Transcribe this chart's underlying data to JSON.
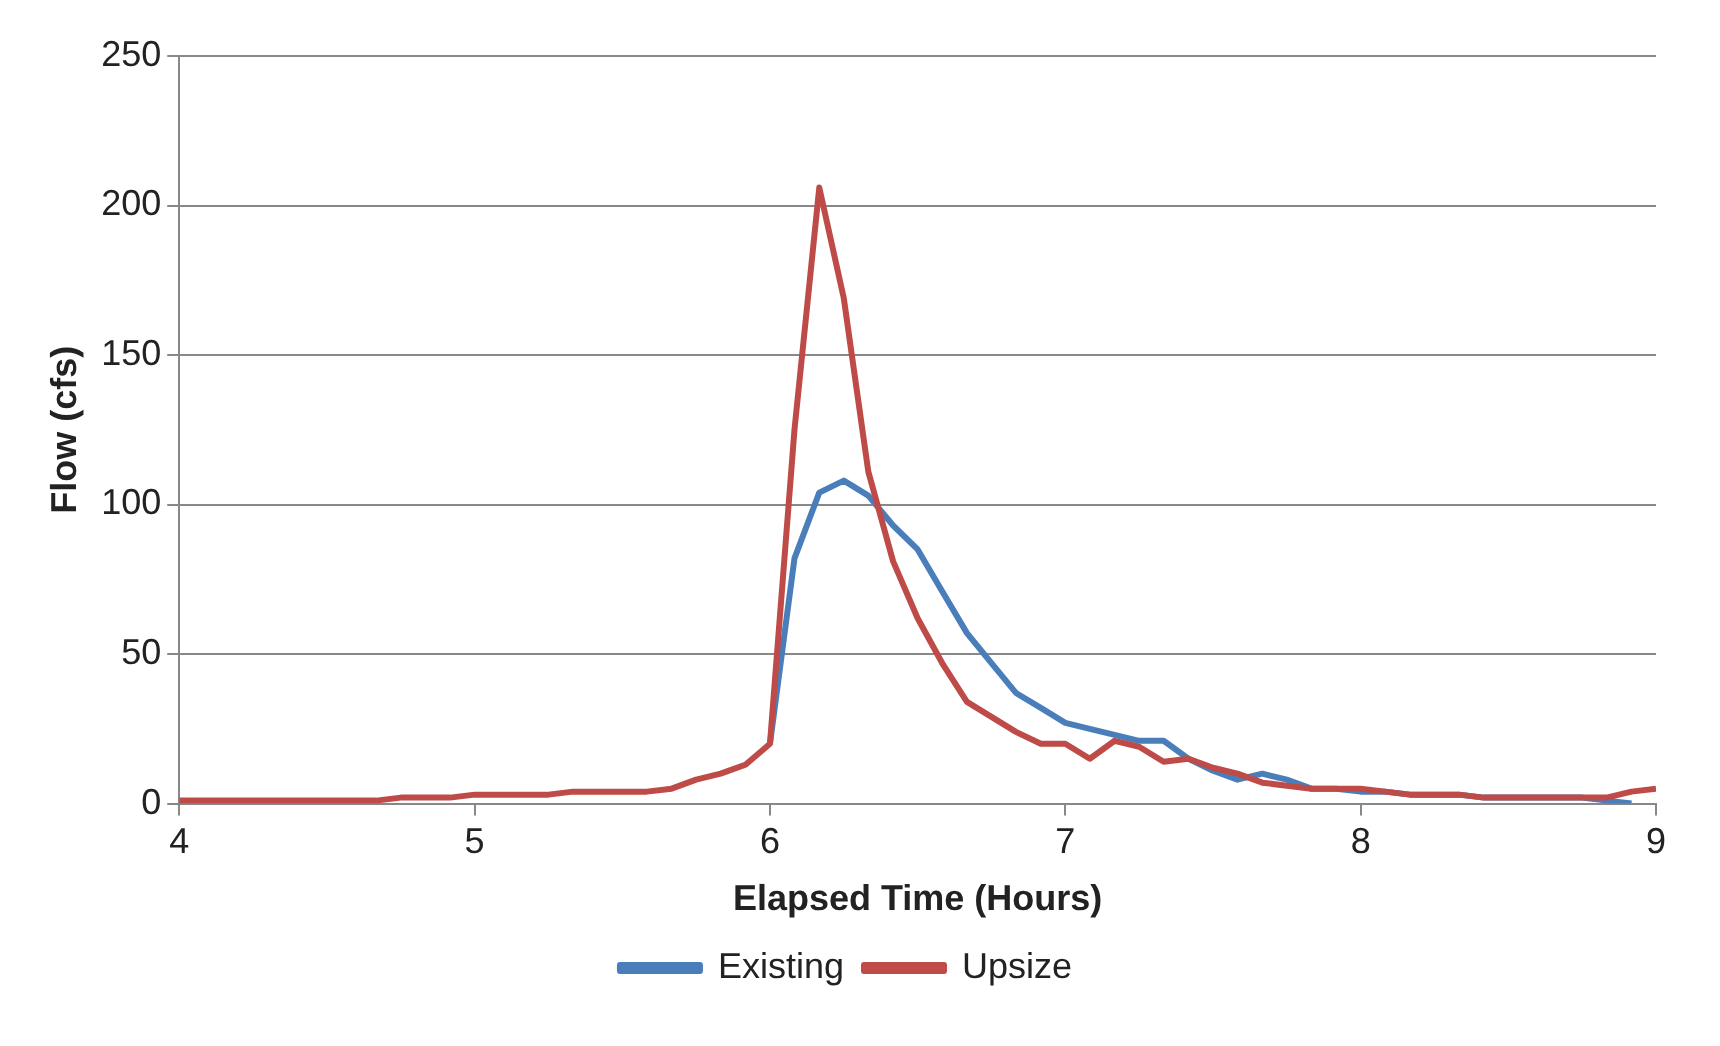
{
  "chart_data": {
    "type": "line",
    "xlabel": "Elapsed Time (Hours)",
    "ylabel": "Flow (cfs)",
    "x": [
      4,
      4.083,
      4.167,
      4.25,
      4.333,
      4.417,
      4.5,
      4.583,
      4.667,
      4.75,
      4.833,
      4.917,
      5,
      5.083,
      5.167,
      5.25,
      5.333,
      5.417,
      5.5,
      5.583,
      5.667,
      5.75,
      5.833,
      5.917,
      6,
      6.083,
      6.167,
      6.25,
      6.333,
      6.417,
      6.5,
      6.583,
      6.667,
      6.75,
      6.833,
      6.917,
      7,
      7.083,
      7.167,
      7.25,
      7.333,
      7.417,
      7.5,
      7.583,
      7.667,
      7.75,
      7.833,
      7.917,
      8,
      8.083,
      8.167,
      8.25,
      8.333,
      8.417,
      8.5,
      8.583,
      8.667,
      8.75,
      8.833,
      8.917,
      9
    ],
    "series": [
      {
        "name": "Existing",
        "color": "#4a7ebb",
        "values": [
          null,
          null,
          null,
          null,
          null,
          null,
          null,
          null,
          null,
          null,
          null,
          null,
          null,
          null,
          null,
          null,
          null,
          null,
          null,
          null,
          null,
          null,
          null,
          null,
          20,
          82,
          104,
          108,
          103,
          93,
          85,
          71,
          57,
          47,
          37,
          32,
          27,
          25,
          23,
          21,
          21,
          15,
          11,
          8,
          10,
          8,
          5,
          5,
          4,
          4,
          3,
          3,
          3,
          2,
          2,
          2,
          2,
          2,
          1,
          0,
          null
        ]
      },
      {
        "name": "Upsize",
        "color": "#be4b48",
        "values": [
          1,
          1,
          1,
          1,
          1,
          1,
          1,
          1,
          1,
          2,
          2,
          2,
          3,
          3,
          3,
          3,
          4,
          4,
          4,
          4,
          5,
          8,
          10,
          13,
          20,
          125,
          206,
          169,
          111,
          81,
          62,
          47,
          34,
          29,
          24,
          20,
          20,
          15,
          21,
          19,
          14,
          15,
          12,
          10,
          7,
          6,
          5,
          5,
          5,
          4,
          3,
          3,
          3,
          2,
          2,
          2,
          2,
          2,
          2,
          4,
          5
        ]
      }
    ],
    "xlim": [
      4,
      9
    ],
    "xticks": [
      4,
      5,
      6,
      7,
      8,
      9
    ],
    "ylim": [
      0,
      250
    ],
    "yticks": [
      0,
      50,
      100,
      150,
      200,
      250
    ],
    "grid": "y",
    "legend": "bottom",
    "marker": "none",
    "line_style": "solid"
  }
}
